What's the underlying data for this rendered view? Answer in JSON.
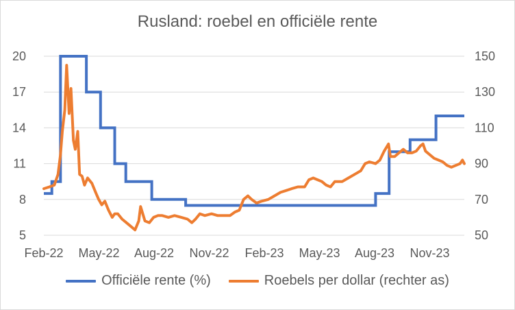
{
  "chart_data": {
    "type": "line",
    "title": "Rusland: roebel en officiële rente",
    "xlabel": "",
    "ylabel": "",
    "x_ticks": [
      "Feb-22",
      "May-22",
      "Aug-22",
      "Nov-22",
      "Feb-23",
      "May-23",
      "Aug-23",
      "Nov-23"
    ],
    "x_range": [
      "2022-02-01",
      "2023-12-15"
    ],
    "y_left": {
      "range": [
        5,
        20
      ],
      "ticks": [
        5,
        8,
        11,
        14,
        17,
        20
      ]
    },
    "y_right": {
      "range": [
        50,
        150
      ],
      "ticks": [
        50,
        70,
        90,
        110,
        130,
        150
      ]
    },
    "grid": "horizontal",
    "legend_position": "bottom",
    "colors": {
      "rate": "#4472C4",
      "rub": "#ED7D31"
    },
    "series": [
      {
        "name": "Officiële rente (%)",
        "axis": "left",
        "step": true,
        "points": [
          [
            "2022-02-01",
            8.5
          ],
          [
            "2022-02-14",
            9.5
          ],
          [
            "2022-02-28",
            20
          ],
          [
            "2022-04-11",
            17
          ],
          [
            "2022-05-04",
            14
          ],
          [
            "2022-05-27",
            11
          ],
          [
            "2022-06-14",
            9.5
          ],
          [
            "2022-07-26",
            8
          ],
          [
            "2022-09-19",
            7.5
          ],
          [
            "2023-07-24",
            8.5
          ],
          [
            "2023-08-15",
            12
          ],
          [
            "2023-09-18",
            13
          ],
          [
            "2023-10-30",
            15
          ],
          [
            "2023-12-15",
            15
          ]
        ]
      },
      {
        "name": "Roebels per dollar (rechter as)",
        "axis": "right",
        "points": [
          [
            "2022-02-01",
            76
          ],
          [
            "2022-02-10",
            77
          ],
          [
            "2022-02-18",
            78
          ],
          [
            "2022-02-24",
            84
          ],
          [
            "2022-02-28",
            95
          ],
          [
            "2022-03-03",
            108
          ],
          [
            "2022-03-07",
            120
          ],
          [
            "2022-03-10",
            145
          ],
          [
            "2022-03-14",
            118
          ],
          [
            "2022-03-17",
            132
          ],
          [
            "2022-03-21",
            103
          ],
          [
            "2022-03-24",
            98
          ],
          [
            "2022-03-28",
            108
          ],
          [
            "2022-03-31",
            84
          ],
          [
            "2022-04-04",
            83
          ],
          [
            "2022-04-08",
            78
          ],
          [
            "2022-04-13",
            82
          ],
          [
            "2022-04-20",
            79
          ],
          [
            "2022-04-26",
            74
          ],
          [
            "2022-05-01",
            70
          ],
          [
            "2022-05-06",
            67
          ],
          [
            "2022-05-11",
            69
          ],
          [
            "2022-05-17",
            64
          ],
          [
            "2022-05-23",
            60
          ],
          [
            "2022-05-27",
            62
          ],
          [
            "2022-06-01",
            62
          ],
          [
            "2022-06-08",
            59
          ],
          [
            "2022-06-15",
            57
          ],
          [
            "2022-06-22",
            55
          ],
          [
            "2022-06-29",
            53
          ],
          [
            "2022-07-05",
            58
          ],
          [
            "2022-07-08",
            66
          ],
          [
            "2022-07-15",
            58
          ],
          [
            "2022-07-22",
            57
          ],
          [
            "2022-07-29",
            60
          ],
          [
            "2022-08-05",
            61
          ],
          [
            "2022-08-12",
            61
          ],
          [
            "2022-08-22",
            60
          ],
          [
            "2022-09-01",
            61
          ],
          [
            "2022-09-12",
            60
          ],
          [
            "2022-09-22",
            59
          ],
          [
            "2022-09-29",
            57
          ],
          [
            "2022-10-05",
            59
          ],
          [
            "2022-10-12",
            62
          ],
          [
            "2022-10-20",
            61
          ],
          [
            "2022-10-31",
            62
          ],
          [
            "2022-11-10",
            61
          ],
          [
            "2022-11-20",
            61
          ],
          [
            "2022-11-30",
            61
          ],
          [
            "2022-12-08",
            63
          ],
          [
            "2022-12-15",
            64
          ],
          [
            "2022-12-22",
            70
          ],
          [
            "2022-12-29",
            72
          ],
          [
            "2023-01-04",
            70
          ],
          [
            "2023-01-12",
            68
          ],
          [
            "2023-01-20",
            69
          ],
          [
            "2023-01-31",
            70
          ],
          [
            "2023-02-10",
            72
          ],
          [
            "2023-02-20",
            74
          ],
          [
            "2023-03-01",
            75
          ],
          [
            "2023-03-10",
            76
          ],
          [
            "2023-03-20",
            77
          ],
          [
            "2023-03-31",
            77
          ],
          [
            "2023-04-07",
            81
          ],
          [
            "2023-04-14",
            82
          ],
          [
            "2023-04-21",
            81
          ],
          [
            "2023-04-28",
            80
          ],
          [
            "2023-05-05",
            78
          ],
          [
            "2023-05-12",
            77
          ],
          [
            "2023-05-19",
            80
          ],
          [
            "2023-05-31",
            80
          ],
          [
            "2023-06-10",
            82
          ],
          [
            "2023-06-20",
            84
          ],
          [
            "2023-06-30",
            86
          ],
          [
            "2023-07-07",
            90
          ],
          [
            "2023-07-14",
            91
          ],
          [
            "2023-07-24",
            90
          ],
          [
            "2023-07-31",
            92
          ],
          [
            "2023-08-07",
            97
          ],
          [
            "2023-08-14",
            101
          ],
          [
            "2023-08-17",
            94
          ],
          [
            "2023-08-24",
            94
          ],
          [
            "2023-08-31",
            96
          ],
          [
            "2023-09-07",
            98
          ],
          [
            "2023-09-14",
            96
          ],
          [
            "2023-09-21",
            96
          ],
          [
            "2023-09-28",
            97
          ],
          [
            "2023-10-05",
            100
          ],
          [
            "2023-10-09",
            101
          ],
          [
            "2023-10-13",
            97
          ],
          [
            "2023-10-20",
            95
          ],
          [
            "2023-10-27",
            93
          ],
          [
            "2023-11-03",
            92
          ],
          [
            "2023-11-10",
            91
          ],
          [
            "2023-11-17",
            89
          ],
          [
            "2023-11-24",
            88
          ],
          [
            "2023-12-01",
            89
          ],
          [
            "2023-12-08",
            90
          ],
          [
            "2023-12-12",
            92
          ],
          [
            "2023-12-15",
            90
          ]
        ]
      }
    ]
  }
}
